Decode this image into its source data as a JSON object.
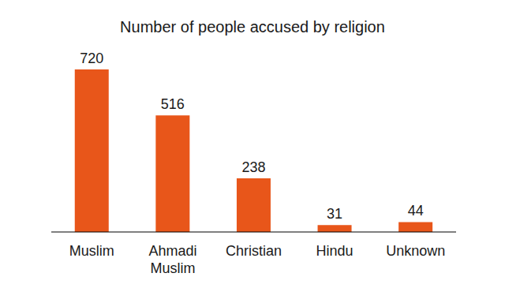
{
  "chart_data": {
    "type": "bar",
    "title": "Number of people accused by religion",
    "categories": [
      "Muslim",
      "Ahmadi Muslim",
      "Christian",
      "Hindu",
      "Unknown"
    ],
    "values": [
      720,
      516,
      238,
      31,
      44
    ],
    "color": "#e8561a",
    "data_labels": true,
    "grid": false,
    "tick_labels": "x"
  }
}
